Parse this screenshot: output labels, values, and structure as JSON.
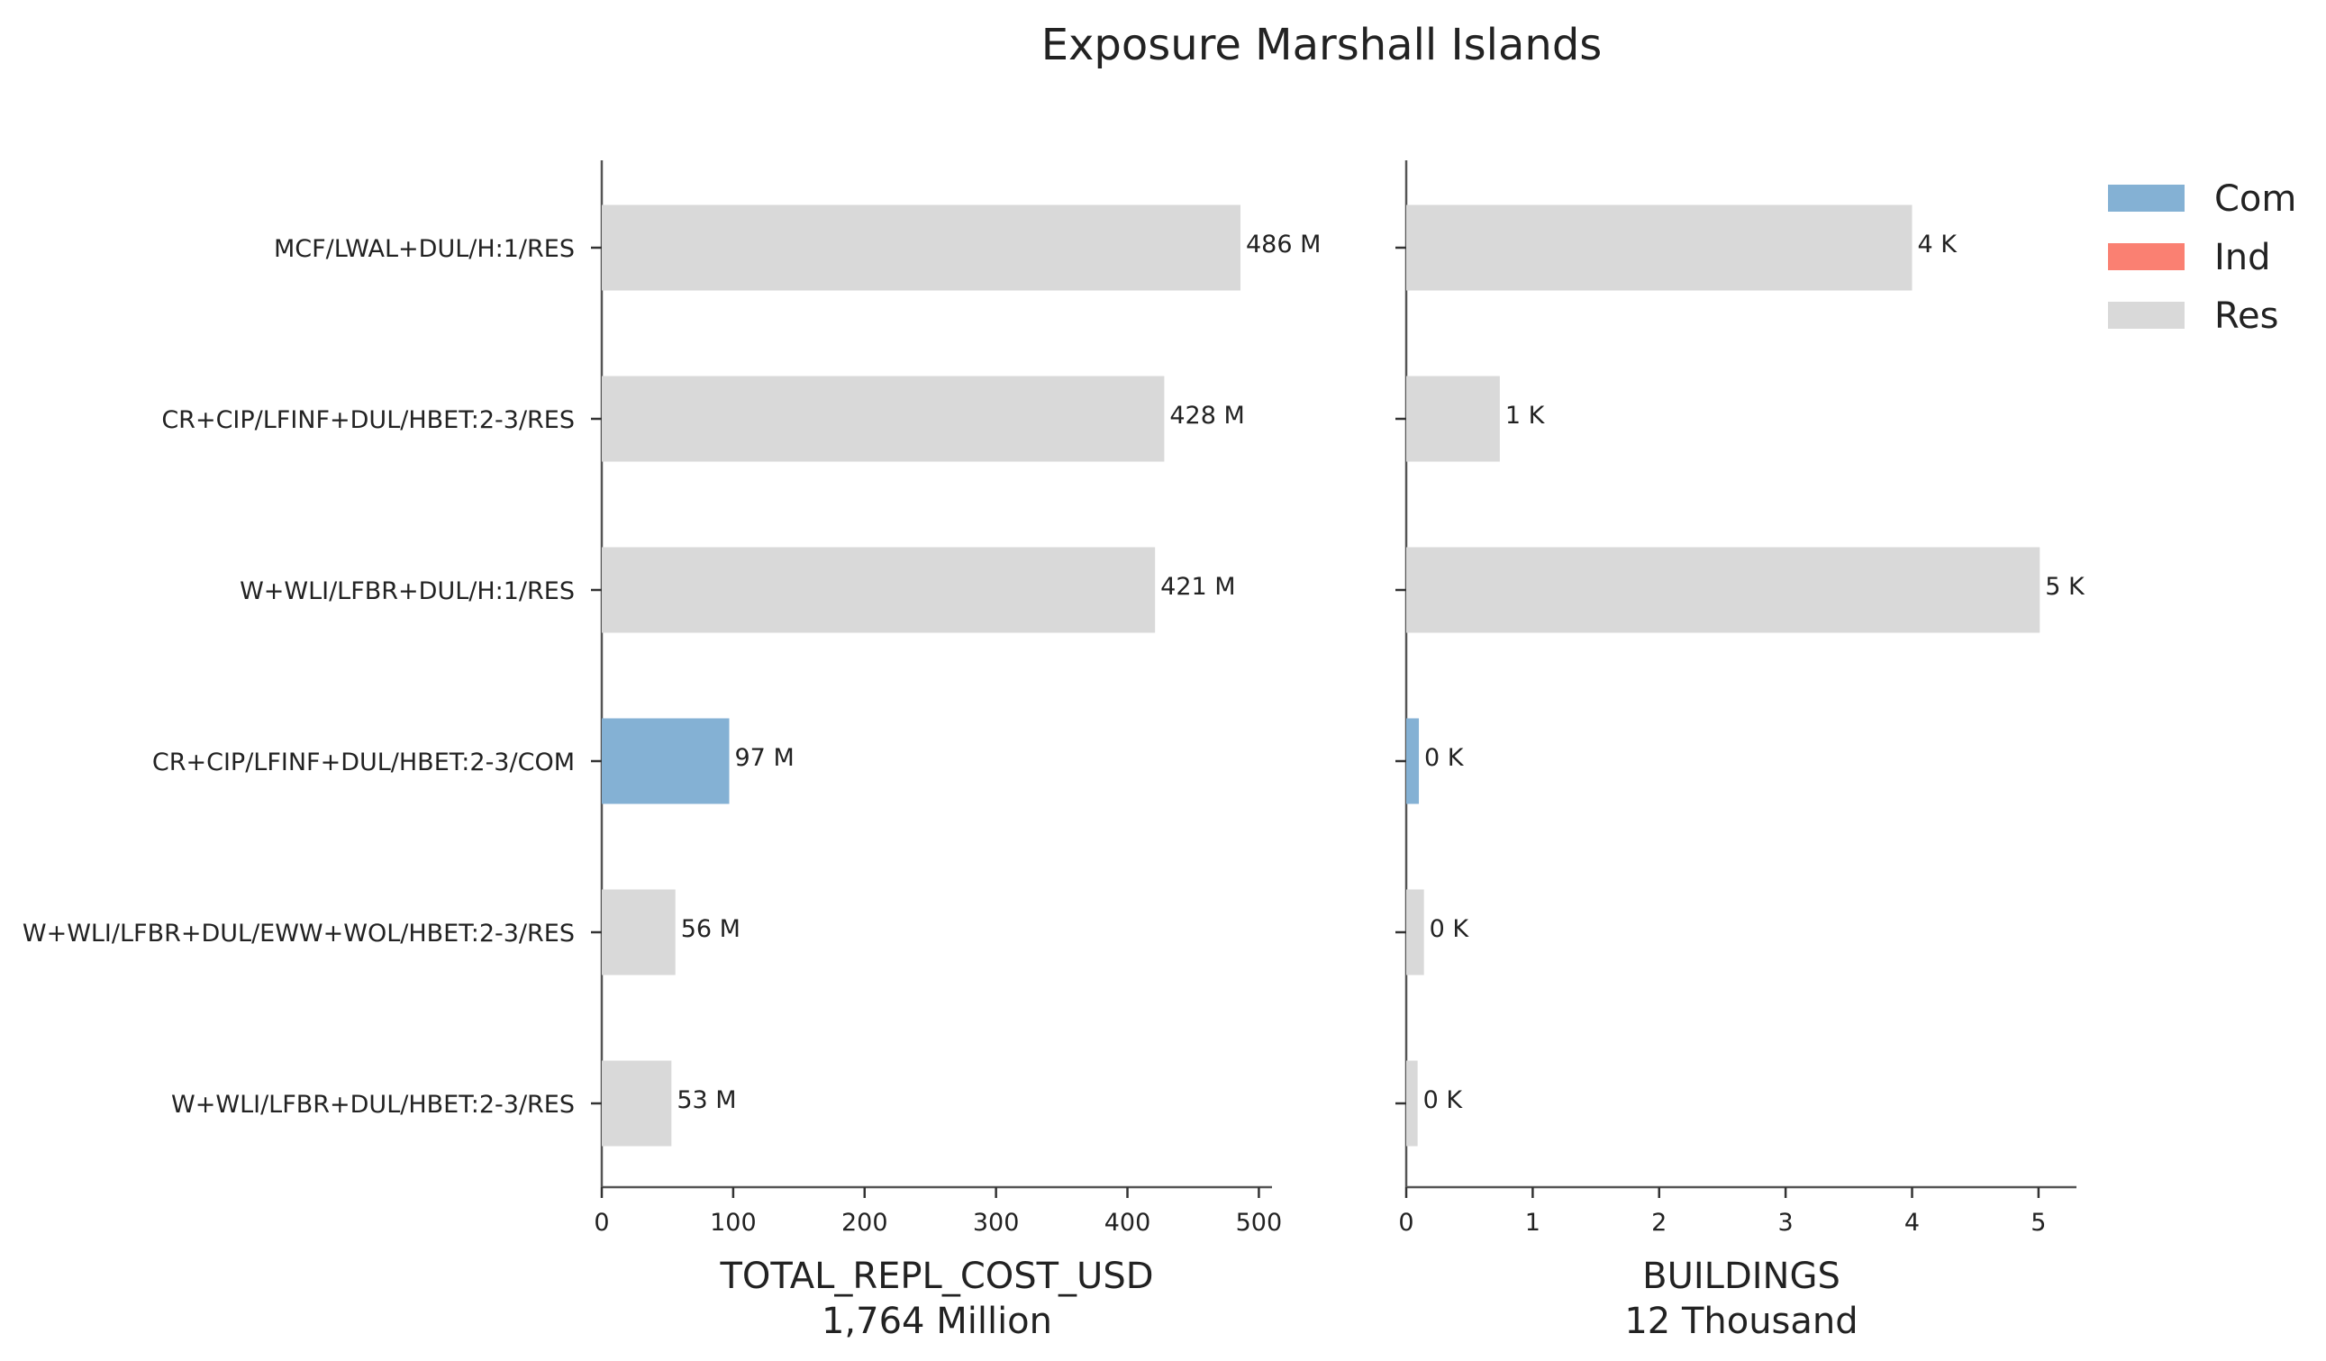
{
  "chart_data": {
    "type": "bar",
    "orientation": "horizontal",
    "title": "Exposure Marshall Islands",
    "colors": {
      "Com": "#84b1d4",
      "Ind": "#fa8072",
      "Res": "#d9d9d9"
    },
    "legend": {
      "position": "top-right",
      "entries": [
        "Com",
        "Ind",
        "Res"
      ]
    },
    "categories": [
      "MCF/LWAL+DUL/H:1/RES",
      "CR+CIP/LFINF+DUL/HBET:2-3/RES",
      "W+WLI/LFBR+DUL/H:1/RES",
      "CR+CIP/LFINF+DUL/HBET:2-3/COM",
      "W+WLI/LFBR+DUL/EWW+WOL/HBET:2-3/RES",
      "W+WLI/LFBR+DUL/HBET:2-3/RES"
    ],
    "occupancy": [
      "Res",
      "Res",
      "Res",
      "Com",
      "Res",
      "Res"
    ],
    "panels": [
      {
        "id": "cost",
        "xlabel": "TOTAL_REPL_COST_USD",
        "xlabel_sub": "1,764 Million",
        "xlim": [
          0,
          510
        ],
        "ticks": [
          0,
          100,
          200,
          300,
          400,
          500
        ],
        "tick_labels": [
          "0",
          "100",
          "200",
          "300",
          "400",
          "500"
        ],
        "values": [
          486,
          428,
          421,
          97,
          56,
          53
        ],
        "value_labels": [
          "486 M",
          "428 M",
          "421 M",
          "97 M",
          "56 M",
          "53 M"
        ]
      },
      {
        "id": "buildings",
        "xlabel": "BUILDINGS",
        "xlabel_sub": "12 Thousand",
        "xlim": [
          0,
          5.3
        ],
        "ticks": [
          0,
          1,
          2,
          3,
          4,
          5
        ],
        "tick_labels": [
          "0",
          "1",
          "2",
          "3",
          "4",
          "5"
        ],
        "values": [
          4.0,
          0.74,
          5.01,
          0.1,
          0.14,
          0.09
        ],
        "value_labels": [
          "4 K",
          "1 K",
          "5 K",
          "0 K",
          "0 K",
          "0 K"
        ]
      }
    ]
  }
}
